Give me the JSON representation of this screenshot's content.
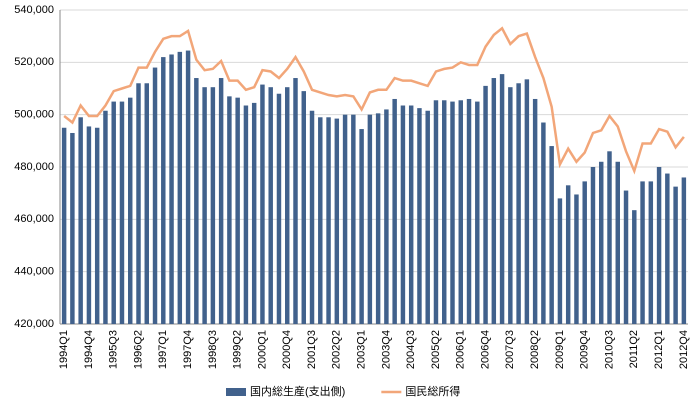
{
  "chart_data": {
    "type": "bar_line",
    "categories": [
      "1994Q1",
      null,
      null,
      "1994Q4",
      null,
      null,
      "1995Q3",
      null,
      null,
      "1996Q2",
      null,
      null,
      "1997Q1",
      null,
      null,
      "1997Q4",
      null,
      null,
      "1998Q3",
      null,
      null,
      "1999Q2",
      null,
      null,
      "2000Q1",
      null,
      null,
      "2000Q4",
      null,
      null,
      "2001Q3",
      null,
      null,
      "2002Q2",
      null,
      null,
      "2003Q1",
      null,
      null,
      "2003Q4",
      null,
      null,
      "2004Q3",
      null,
      null,
      "2005Q2",
      null,
      null,
      "2006Q1",
      null,
      null,
      "2006Q4",
      null,
      null,
      "2007Q3",
      null,
      null,
      "2008Q2",
      null,
      null,
      "2009Q1",
      null,
      null,
      "2009Q4",
      null,
      null,
      "2010Q3",
      null,
      null,
      "2011Q2",
      null,
      null,
      "2012Q1",
      null,
      null,
      "2012Q4"
    ],
    "series": [
      {
        "name": "国内総生産(支出側)",
        "color": "#41618c",
        "kind": "bar",
        "values": [
          495000,
          493000,
          499000,
          495500,
          495000,
          501500,
          505000,
          505000,
          506500,
          512000,
          512000,
          518000,
          522000,
          523000,
          524000,
          524500,
          514000,
          510500,
          510500,
          514000,
          507000,
          506500,
          503500,
          504500,
          511500,
          510500,
          508000,
          510500,
          514000,
          509000,
          501500,
          499000,
          499000,
          498500,
          500000,
          500000,
          494500,
          500000,
          500500,
          502000,
          506000,
          503500,
          503500,
          502500,
          501500,
          505500,
          505500,
          505000,
          505500,
          506000,
          505000,
          511000,
          514000,
          515500,
          510500,
          512000,
          513500,
          506000,
          497000,
          488000,
          468000,
          473000,
          469500,
          474500,
          480000,
          482000,
          486000,
          482000,
          471000,
          463500,
          474500,
          474500,
          480000,
          477500,
          472500,
          476000
        ]
      },
      {
        "name": "国民総所得",
        "color": "#f2a679",
        "kind": "line",
        "values": [
          499500,
          497000,
          503500,
          499500,
          499500,
          503500,
          509000,
          510000,
          511000,
          518000,
          518000,
          524000,
          529000,
          530000,
          530000,
          532000,
          521000,
          517000,
          517500,
          520500,
          513000,
          513000,
          509500,
          510500,
          517000,
          516500,
          514000,
          517500,
          522000,
          516500,
          509500,
          508500,
          507500,
          507000,
          507500,
          507000,
          502000,
          508500,
          509500,
          509500,
          514000,
          513000,
          513000,
          512000,
          511000,
          516500,
          517500,
          518000,
          520000,
          519000,
          519000,
          526000,
          530500,
          533000,
          527000,
          530000,
          531000,
          522000,
          514000,
          503000,
          481000,
          487000,
          482000,
          485500,
          493000,
          494000,
          499500,
          495500,
          486000,
          478500,
          489000,
          489000,
          494500,
          493500,
          487500,
          491500
        ]
      }
    ],
    "ylim": [
      420000,
      540000
    ],
    "yticks": [
      {
        "value": 420000,
        "label": "420,000"
      },
      {
        "value": 440000,
        "label": "440,000"
      },
      {
        "value": 460000,
        "label": "460,000"
      },
      {
        "value": 480000,
        "label": "480,000"
      },
      {
        "value": 500000,
        "label": "500,000"
      },
      {
        "value": 520000,
        "label": "520,000"
      },
      {
        "value": 540000,
        "label": "540,000"
      }
    ],
    "grid": true,
    "legend": "bottom"
  }
}
